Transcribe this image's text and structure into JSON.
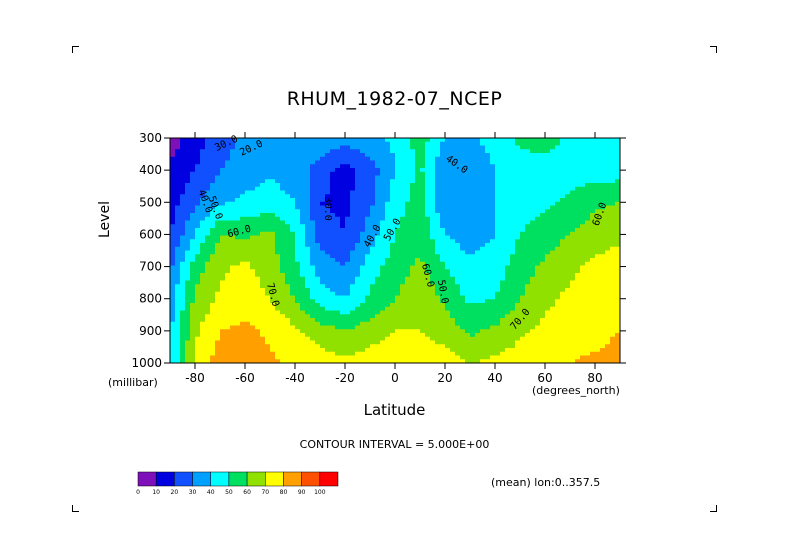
{
  "chart_data": {
    "type": "heatmap",
    "title": "RHUM_1982-07_NCEP",
    "xlabel": "Latitude",
    "ylabel": "Level",
    "x_unit": "(degrees_north)",
    "y_unit": "(millibar)",
    "xlim": [
      -90,
      90
    ],
    "ylim": [
      1000,
      300
    ],
    "x_ticks": [
      -80,
      -60,
      -40,
      -20,
      0,
      20,
      40,
      60,
      80
    ],
    "y_ticks": [
      300,
      400,
      500,
      600,
      700,
      800,
      900,
      1000
    ],
    "x": [
      -90,
      -80,
      -70,
      -60,
      -50,
      -40,
      -30,
      -20,
      -10,
      0,
      10,
      20,
      30,
      40,
      50,
      60,
      70,
      80,
      90
    ],
    "levels": [
      300,
      400,
      500,
      600,
      700,
      800,
      900,
      1000
    ],
    "values": [
      [
        5,
        15,
        25,
        32,
        38,
        40,
        38,
        35,
        38,
        42,
        55,
        40,
        38,
        45,
        52,
        55,
        48,
        45,
        45
      ],
      [
        12,
        20,
        30,
        35,
        38,
        35,
        25,
        15,
        25,
        40,
        52,
        30,
        30,
        40,
        45,
        45,
        45,
        45,
        45
      ],
      [
        15,
        28,
        38,
        42,
        45,
        40,
        20,
        18,
        28,
        45,
        55,
        30,
        32,
        40,
        45,
        48,
        52,
        58,
        60
      ],
      [
        20,
        40,
        60,
        58,
        62,
        50,
        25,
        20,
        35,
        50,
        58,
        40,
        35,
        40,
        50,
        55,
        60,
        65,
        68
      ],
      [
        28,
        55,
        68,
        72,
        65,
        52,
        35,
        30,
        45,
        55,
        62,
        50,
        42,
        45,
        55,
        62,
        68,
        72,
        75
      ],
      [
        35,
        62,
        72,
        75,
        70,
        60,
        45,
        40,
        52,
        60,
        68,
        58,
        48,
        50,
        60,
        68,
        72,
        75,
        78
      ],
      [
        38,
        68,
        80,
        82,
        78,
        72,
        65,
        60,
        65,
        70,
        70,
        65,
        58,
        62,
        68,
        72,
        75,
        76,
        80
      ],
      [
        40,
        72,
        85,
        88,
        82,
        78,
        75,
        72,
        75,
        78,
        78,
        75,
        70,
        72,
        75,
        78,
        80,
        82,
        85
      ]
    ],
    "contour_labels": [
      {
        "text": "30.0",
        "x": -67,
        "y": 325,
        "angle": -25
      },
      {
        "text": "20.0",
        "x": -57,
        "y": 340,
        "angle": -25
      },
      {
        "text": "40.0",
        "x": 24,
        "y": 390,
        "angle": 35
      },
      {
        "text": "40.0",
        "x": -77,
        "y": 500,
        "angle": 70
      },
      {
        "text": "50.0",
        "x": -73,
        "y": 520,
        "angle": 70
      },
      {
        "text": "30.0",
        "x": -28,
        "y": 520,
        "angle": 90
      },
      {
        "text": "40.0",
        "x": -8,
        "y": 610,
        "angle": -60
      },
      {
        "text": "50.0",
        "x": 0,
        "y": 590,
        "angle": -60
      },
      {
        "text": "60.0",
        "x": -62,
        "y": 600,
        "angle": -15
      },
      {
        "text": "60.0",
        "x": 12,
        "y": 730,
        "angle": 75
      },
      {
        "text": "50.0",
        "x": 18,
        "y": 780,
        "angle": 80
      },
      {
        "text": "70.0",
        "x": -50,
        "y": 790,
        "angle": 75
      },
      {
        "text": "70.0",
        "x": 51,
        "y": 870,
        "angle": -50
      },
      {
        "text": "60.0",
        "x": 83,
        "y": 540,
        "angle": -70
      }
    ],
    "colorbar": {
      "levels": [
        "0",
        "10",
        "20",
        "30",
        "40",
        "50",
        "60",
        "70",
        "80",
        "90",
        "100"
      ],
      "colors": [
        "#7d10b8",
        "#0000e0",
        "#1050ff",
        "#00a0ff",
        "#00ffff",
        "#00e060",
        "#90e000",
        "#ffff00",
        "#ffa000",
        "#ff5000",
        "#ff0000"
      ]
    },
    "contour_interval_text": "CONTOUR INTERVAL = 5.000E+00",
    "mean_text": "(mean) lon:0..357.5"
  }
}
